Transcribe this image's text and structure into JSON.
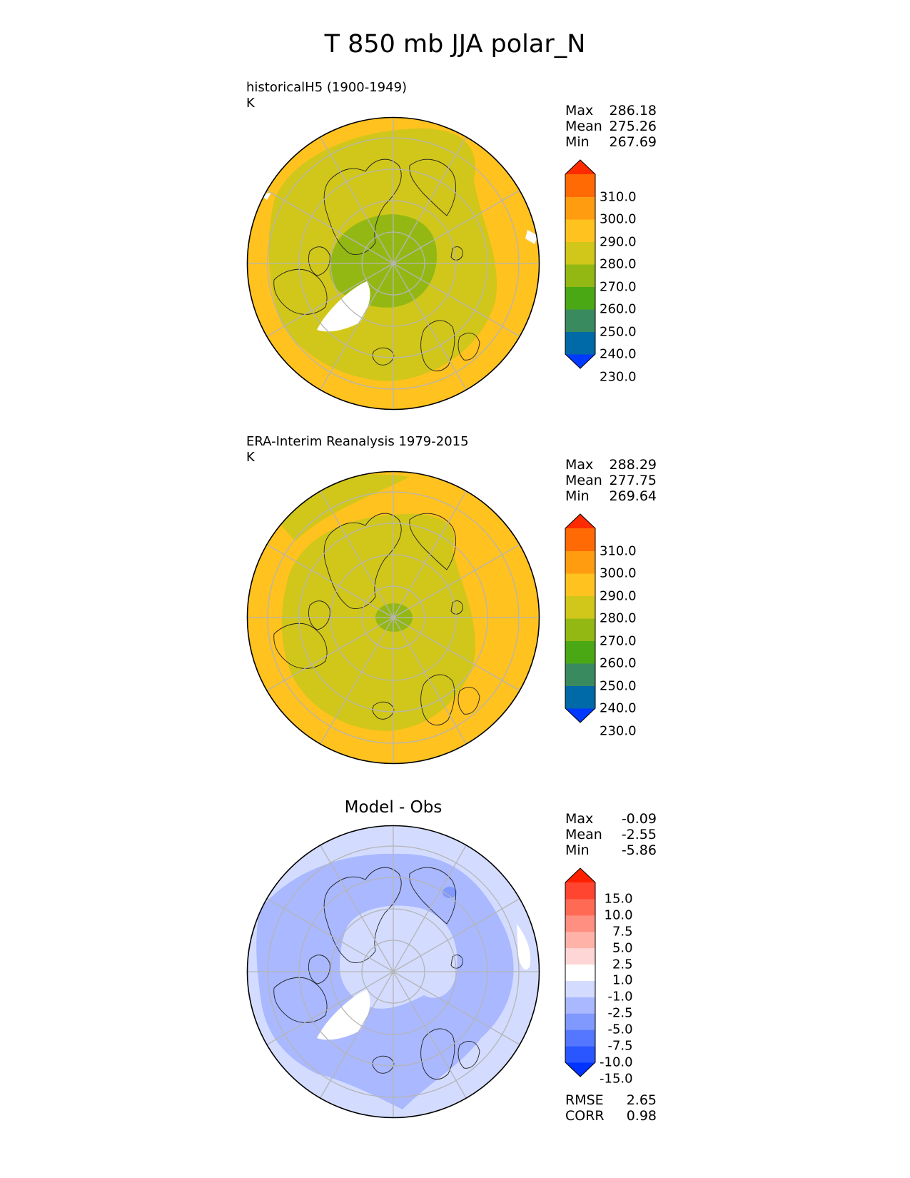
{
  "title": "T 850 mb JJA polar_N",
  "chart_data": [
    {
      "type": "heatmap",
      "projection": "north-polar-stereographic",
      "title_line1": "historicalH5 (1900-1949)",
      "title_line2": "K",
      "stats": {
        "labels": [
          "Max",
          "Mean",
          "Min"
        ],
        "values": [
          "286.18",
          "275.26",
          "267.69"
        ]
      },
      "colorbar": {
        "ticks": [
          "310.0",
          "300.0",
          "290.0",
          "280.0",
          "270.0",
          "260.0",
          "250.0",
          "240.0",
          "230.0"
        ],
        "colors": [
          "#0039ff",
          "#0069a8",
          "#3a8a5f",
          "#4ba815",
          "#93b813",
          "#d1c71a",
          "#ffc21f",
          "#ff9c10",
          "#ff6a05",
          "#ff2b00"
        ]
      },
      "fields": {
        "outer": "#ffc21f",
        "main": "#d1c71a",
        "core": "#93b813",
        "land_outline": "#222222"
      }
    },
    {
      "type": "heatmap",
      "projection": "north-polar-stereographic",
      "title_line1": "ERA-Interim Reanalysis 1979-2015",
      "title_line2": "K",
      "stats": {
        "labels": [
          "Max",
          "Mean",
          "Min"
        ],
        "values": [
          "288.29",
          "277.75",
          "269.64"
        ]
      },
      "colorbar": {
        "ticks": [
          "310.0",
          "300.0",
          "290.0",
          "280.0",
          "270.0",
          "260.0",
          "250.0",
          "240.0",
          "230.0"
        ],
        "colors": [
          "#0039ff",
          "#0069a8",
          "#3a8a5f",
          "#4ba815",
          "#93b813",
          "#d1c71a",
          "#ffc21f",
          "#ff9c10",
          "#ff6a05",
          "#ff2b00"
        ]
      },
      "fields": {
        "outer": "#ffc21f",
        "main": "#d1c71a",
        "core": "#93b813",
        "land_outline": "#222222"
      }
    },
    {
      "type": "heatmap",
      "projection": "north-polar-stereographic",
      "title_center": "Model - Obs",
      "stats": {
        "labels": [
          "Max",
          "Mean",
          "Min"
        ],
        "values": [
          "-0.09",
          "-2.55",
          "-5.86"
        ]
      },
      "colorbar": {
        "ticks": [
          "15.0",
          "10.0",
          "7.5",
          "5.0",
          "2.5",
          "1.0",
          "-1.0",
          "-2.5",
          "-5.0",
          "-7.5",
          "-10.0",
          "-15.0"
        ],
        "colors": [
          "#0033ff",
          "#2a56ff",
          "#5577ff",
          "#8099ff",
          "#a9b8ff",
          "#d3dcff",
          "#ffffff",
          "#ffd6d6",
          "#ffb3a8",
          "#ff8f80",
          "#ff6a55",
          "#ff4530",
          "#ff2000"
        ]
      },
      "fields": {
        "outer": "#d3dcff",
        "main": "#a9b8ff",
        "core": "#d3dcff",
        "spot": "#8099ff",
        "land_outline": "#222222"
      },
      "metrics": {
        "labels": [
          "RMSE",
          "CORR"
        ],
        "values": [
          "2.65",
          "0.98"
        ]
      }
    }
  ]
}
